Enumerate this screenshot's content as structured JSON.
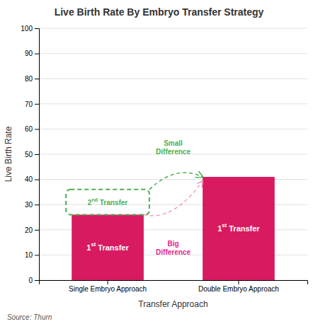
{
  "chart_data": {
    "type": "bar",
    "title": "Live Birth Rate By Embryo Transfer Strategy",
    "x_label": "Transfer Approach",
    "y_label": "Live Birth Rate",
    "categories": [
      "Single Embryo Approach",
      "Double Embryo Approach"
    ],
    "values": [
      26,
      41
    ],
    "color": "#D81B60",
    "ylim": [
      0,
      100
    ],
    "yticks": [
      0,
      10,
      20,
      30,
      40,
      50,
      60,
      70,
      80,
      90,
      100
    ],
    "grid": true,
    "bar_labels": [
      "1st Transfer",
      "1st Transfer"
    ],
    "annotations": [
      {
        "text": "2nd Transfer",
        "color": "#4CAF50",
        "range": [
          26,
          36
        ]
      },
      {
        "text": "Small\nDifference",
        "color": "#4CAF50"
      },
      {
        "text": "Big\nDifference",
        "color": "#E91E8C",
        "arrow_color": "#F48FB1"
      }
    ],
    "source": "Source: Thurn"
  }
}
